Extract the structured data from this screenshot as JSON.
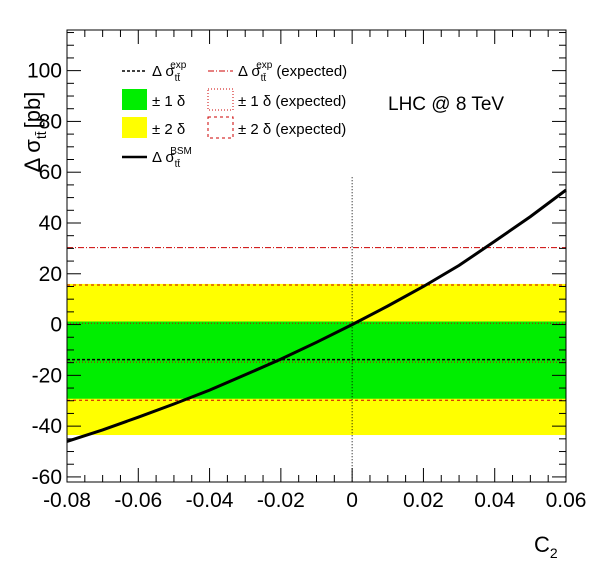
{
  "chart_data": {
    "type": "line",
    "annotation": "LHC @ 8 TeV",
    "xlabel_main": "C",
    "xlabel_sub": "2",
    "ylabel": "Δ σ",
    "ylabel_sub": "tt̄",
    "ylabel_unit": "[pb]",
    "xlim": [
      -0.08,
      0.06
    ],
    "ylim": [
      -62,
      116
    ],
    "x_ticks": [
      -0.08,
      -0.06,
      -0.04,
      -0.02,
      0,
      0.02,
      0.04,
      0.06
    ],
    "x_tick_labels": [
      "-0.08",
      "-0.06",
      "-0.04",
      "-0.02",
      "0",
      "0.02",
      "0.04",
      "0.06"
    ],
    "y_ticks": [
      -60,
      -40,
      -20,
      0,
      20,
      40,
      60,
      80,
      100
    ],
    "y_tick_labels": [
      "-60",
      "-40",
      "-20",
      "0",
      "20",
      "40",
      "60",
      "80",
      "100"
    ],
    "bands": {
      "two_sigma": {
        "low": -43.5,
        "high": 16,
        "color": "#ffff00"
      },
      "one_sigma": {
        "low": -29.2,
        "high": 1.2,
        "color": "#00ee00"
      }
    },
    "observed_line": {
      "y": -13.8,
      "color": "#000000"
    },
    "expected_lines": {
      "central": {
        "y": 30.3,
        "color": "#cc0000"
      },
      "one_sigma": {
        "low": -14.8,
        "high": 0.5,
        "color": "#cc0000"
      },
      "two_sigma": {
        "low": -29.8,
        "high": 15.6,
        "color": "#cc0000"
      }
    },
    "vertical_marker": {
      "x": 0,
      "y_top": 58
    },
    "bsm_curve": {
      "name": "Δ σ BSM",
      "x": [
        -0.08,
        -0.07,
        -0.06,
        -0.05,
        -0.04,
        -0.03,
        -0.02,
        -0.01,
        0,
        0.01,
        0.02,
        0.03,
        0.04,
        0.05,
        0.06
      ],
      "y": [
        -46,
        -41.5,
        -36.5,
        -31.3,
        -25.8,
        -19.8,
        -13.6,
        -7.0,
        0,
        7.3,
        15.0,
        23.3,
        32.8,
        42.5,
        53
      ]
    },
    "legend": {
      "obs": {
        "prefix": "Δ σ",
        "sub": "tt̄",
        "sup": "exp"
      },
      "exp": {
        "prefix": "Δ σ",
        "sub": "tt̄",
        "sup": "exp",
        "suffix": "(expected)"
      },
      "one_sigma": "± 1 δ",
      "one_sigma_exp": "± 1 δ (expected)",
      "two_sigma": "± 2 δ",
      "two_sigma_exp": "± 2 δ (expected)",
      "bsm": {
        "prefix": "Δ σ",
        "sub": "tt̄",
        "sup": "BSM"
      }
    }
  }
}
